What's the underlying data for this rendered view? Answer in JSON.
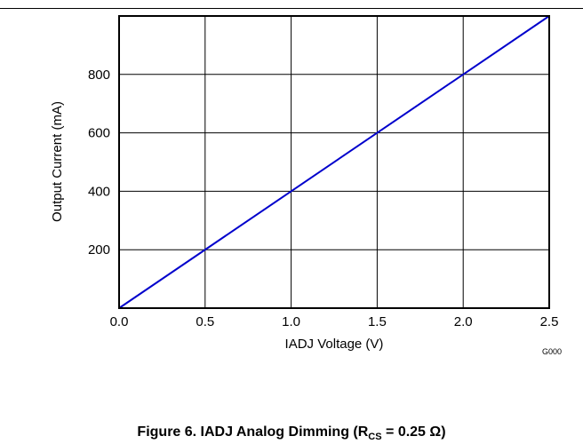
{
  "chart_data": {
    "type": "line",
    "xlabel": "IADJ Voltage (V)",
    "ylabel": "Output Current (mA)",
    "xlim": [
      0,
      2.5
    ],
    "ylim": [
      0,
      1000
    ],
    "x_ticks": [
      "0.0",
      "0.5",
      "1.0",
      "1.5",
      "2.0",
      "2.5"
    ],
    "x_tick_values": [
      0,
      0.5,
      1.0,
      1.5,
      2.0,
      2.5
    ],
    "y_ticks": [
      "200",
      "400",
      "600",
      "800"
    ],
    "y_tick_values": [
      200,
      400,
      600,
      800
    ],
    "grid": true,
    "series": [
      {
        "color": "#0000cc",
        "x": [
          0,
          2.5
        ],
        "y": [
          0,
          1000
        ]
      }
    ],
    "graph_id": "G000"
  },
  "caption": {
    "prefix": "Figure 6. IADJ Analog Dimming (R",
    "subscript": "CS",
    "suffix": " = 0.25 Ω)"
  }
}
